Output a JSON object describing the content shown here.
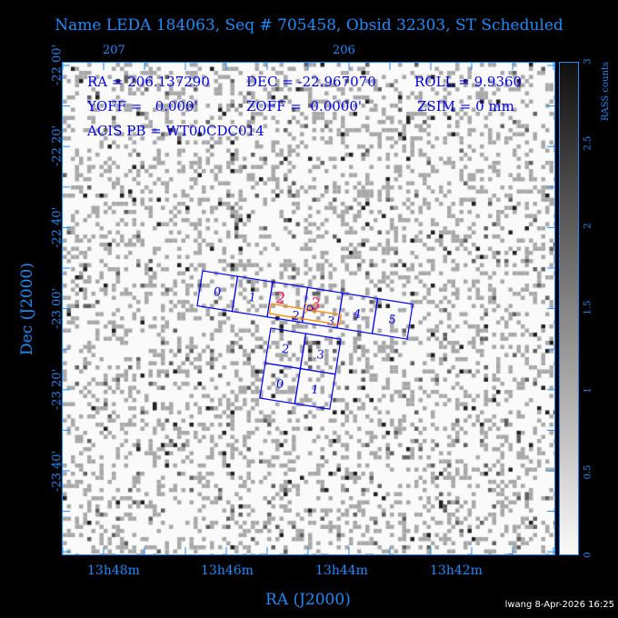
{
  "title": "Name LEDA 184063, Seq # 705458, Obsid 32303, ST Scheduled",
  "info": {
    "ra": "RA = 206.137290",
    "dec": "DEC = -22.967070",
    "roll": "ROLL = 9.9360",
    "yoff": "YOFF =   0.000'",
    "zoff": "ZOFF =  0.0000'",
    "zsim": "ZSIM = 0 mm",
    "acis_pb": "ACIS PB = WT00CDC014"
  },
  "colors": {
    "axis": "#1a8cff",
    "info_text": "#0000ee",
    "chips": "#0000ff",
    "target_box": "#ff8c00",
    "target_labels": "#ff1a66",
    "footer": "#ffffff"
  },
  "chart_data": {
    "type": "heatmap",
    "title": "Name LEDA 184063, Seq # 705458, Obsid 32303, ST Scheduled",
    "xlabel": "RA (J2000)",
    "ylabel": "Dec (J2000)",
    "x_ticks": [
      "13h48m",
      "13h46m",
      "13h44m",
      "13h42m"
    ],
    "x_top_ticks": [
      "207",
      "206"
    ],
    "y_ticks": [
      "-22 00'",
      "-22 20'",
      "-22 40'",
      "-23 00'",
      "-23 20'",
      "-23 40'"
    ],
    "colorbar": {
      "label": "RASS counts",
      "range": [
        0,
        3
      ],
      "ticks": [
        "0",
        "0.5",
        "1",
        "1.5",
        "2",
        "2.5",
        "3"
      ],
      "colormap": "grey-reversed"
    },
    "acis_s_chips": [
      "0",
      "1",
      "2",
      "3",
      "4",
      "5"
    ],
    "acis_i_chips": [
      "2",
      "3",
      "0",
      "1"
    ],
    "target_labels": [
      "2",
      "3"
    ]
  },
  "footer": "lwang  8-Apr-2026 16:25"
}
